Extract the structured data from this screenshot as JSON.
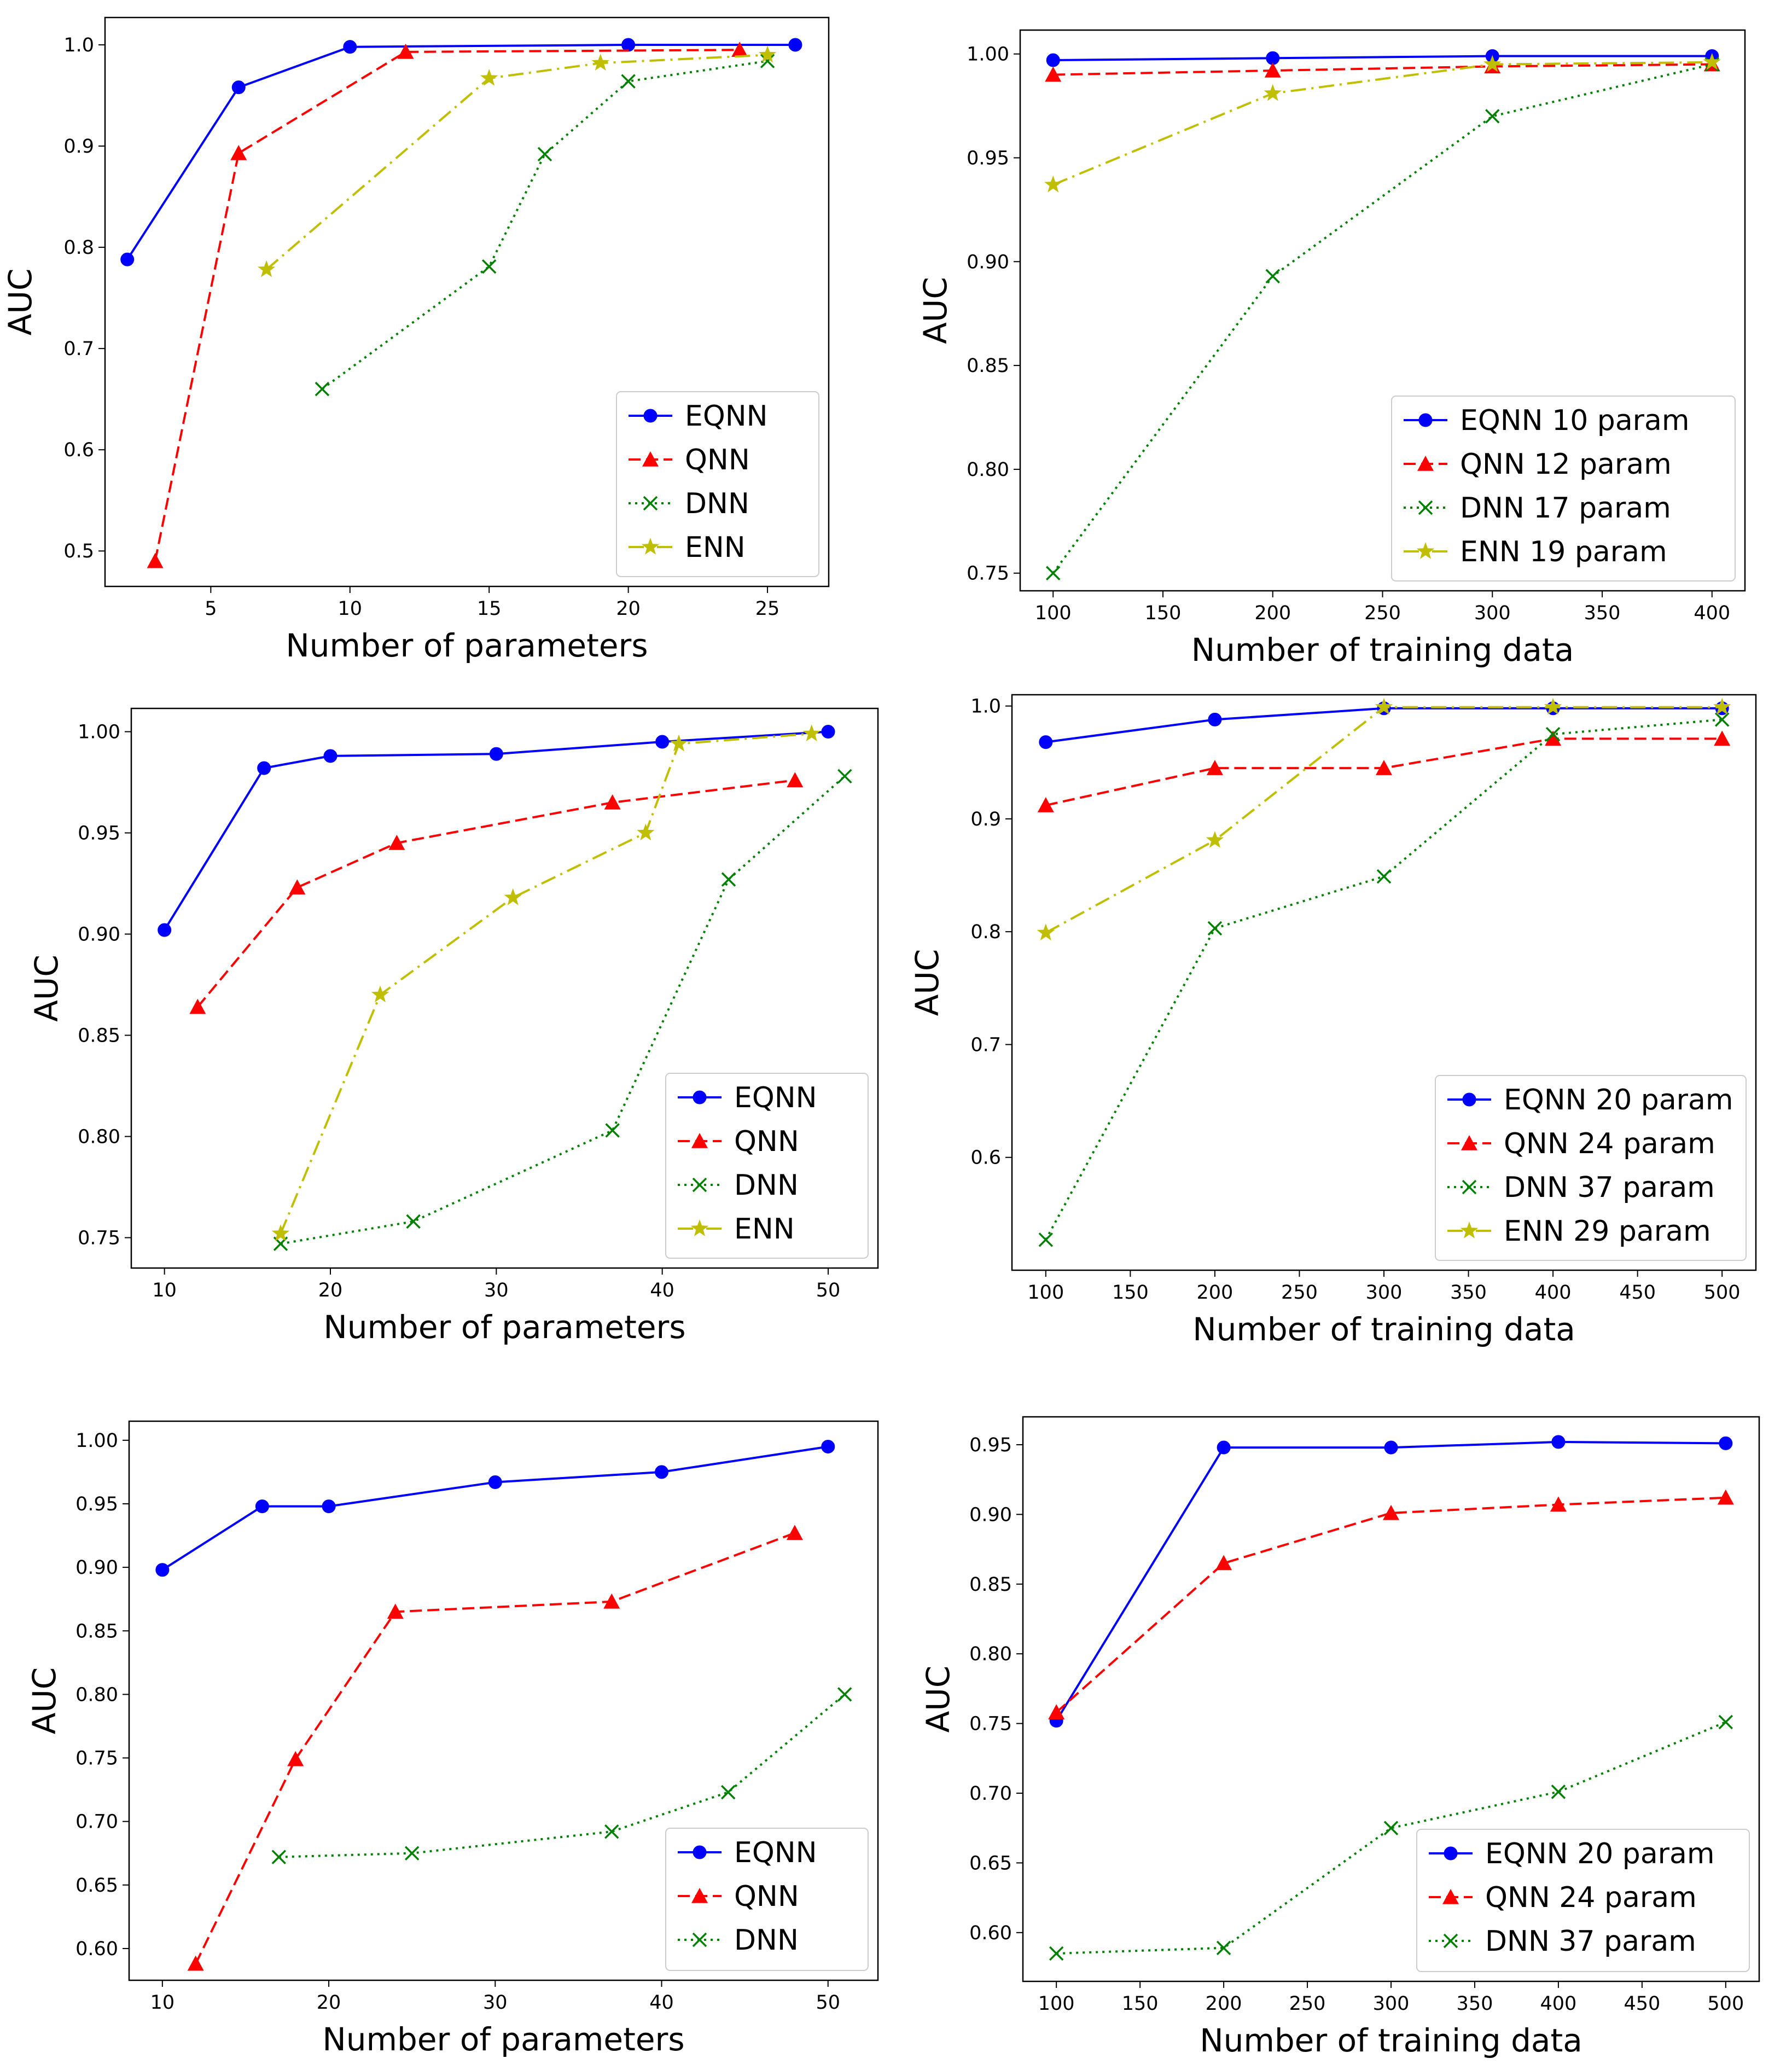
{
  "chart_data": [
    {
      "type": "line",
      "panel": "top-left",
      "xlabel": "Number of parameters",
      "ylabel": "AUC",
      "xlim": [
        1.2,
        27.2
      ],
      "ylim": [
        0.465,
        1.027
      ],
      "xticks": [
        5,
        10,
        15,
        20,
        25
      ],
      "yticks": [
        0.5,
        0.6,
        0.7,
        0.8,
        0.9,
        1.0
      ],
      "ytick_format": 1,
      "legend_position": "lower-right",
      "series": [
        {
          "name": "EQNN",
          "style": "eqnn",
          "x": [
            2,
            6,
            10,
            20,
            26
          ],
          "y": [
            0.788,
            0.958,
            0.998,
            1.0,
            1.0
          ]
        },
        {
          "name": "QNN",
          "style": "qnn",
          "x": [
            3,
            6,
            12,
            24
          ],
          "y": [
            0.49,
            0.893,
            0.993,
            0.995
          ]
        },
        {
          "name": "DNN",
          "style": "dnn",
          "x": [
            9,
            15,
            17,
            20,
            25
          ],
          "y": [
            0.66,
            0.781,
            0.892,
            0.964,
            0.984
          ]
        },
        {
          "name": "ENN",
          "style": "enn",
          "x": [
            7,
            15,
            19,
            25
          ],
          "y": [
            0.778,
            0.967,
            0.982,
            0.99
          ]
        }
      ]
    },
    {
      "type": "line",
      "panel": "top-right",
      "xlabel": "Number of training data",
      "ylabel": "AUC",
      "xlim": [
        85,
        415
      ],
      "ylim": [
        0.7415,
        1.0115
      ],
      "xticks": [
        100,
        150,
        200,
        250,
        300,
        350,
        400
      ],
      "yticks": [
        0.75,
        0.8,
        0.85,
        0.9,
        0.95,
        1.0
      ],
      "ytick_format": 2,
      "legend_position": "lower-right",
      "series": [
        {
          "name": "EQNN 10 param",
          "style": "eqnn",
          "x": [
            100,
            200,
            300,
            400
          ],
          "y": [
            0.997,
            0.998,
            0.999,
            0.999
          ]
        },
        {
          "name": "QNN 12 param",
          "style": "qnn",
          "x": [
            100,
            200,
            300,
            400
          ],
          "y": [
            0.99,
            0.992,
            0.994,
            0.995
          ]
        },
        {
          "name": "DNN 17 param",
          "style": "dnn",
          "x": [
            100,
            200,
            300,
            400
          ],
          "y": [
            0.75,
            0.893,
            0.97,
            0.995
          ]
        },
        {
          "name": "ENN 19 param",
          "style": "enn",
          "x": [
            100,
            200,
            300,
            400
          ],
          "y": [
            0.937,
            0.981,
            0.995,
            0.996
          ]
        }
      ]
    },
    {
      "type": "line",
      "panel": "middle-left",
      "xlabel": "Number of parameters",
      "ylabel": "AUC",
      "xlim": [
        8,
        53
      ],
      "ylim": [
        0.735,
        1.0115
      ],
      "xticks": [
        10,
        20,
        30,
        40,
        50
      ],
      "yticks": [
        0.75,
        0.8,
        0.85,
        0.9,
        0.95,
        1.0
      ],
      "ytick_format": 2,
      "legend_position": "lower-right",
      "series": [
        {
          "name": "EQNN",
          "style": "eqnn",
          "x": [
            10,
            16,
            20,
            30,
            40,
            50
          ],
          "y": [
            0.902,
            0.982,
            0.988,
            0.989,
            0.995,
            1.0
          ]
        },
        {
          "name": "QNN",
          "style": "qnn",
          "x": [
            12,
            18,
            24,
            37,
            48
          ],
          "y": [
            0.864,
            0.923,
            0.945,
            0.965,
            0.976
          ]
        },
        {
          "name": "DNN",
          "style": "dnn",
          "x": [
            17,
            25,
            37,
            44,
            51
          ],
          "y": [
            0.747,
            0.758,
            0.803,
            0.927,
            0.978
          ]
        },
        {
          "name": "ENN",
          "style": "enn",
          "x": [
            17,
            23,
            31,
            39,
            41,
            49
          ],
          "y": [
            0.752,
            0.87,
            0.918,
            0.95,
            0.994,
            0.999
          ]
        }
      ]
    },
    {
      "type": "line",
      "panel": "middle-right",
      "xlabel": "Number of training data",
      "ylabel": "AUC",
      "xlim": [
        80,
        520
      ],
      "ylim": [
        0.5,
        1.01
      ],
      "xticks": [
        100,
        150,
        200,
        250,
        300,
        350,
        400,
        450,
        500
      ],
      "yticks": [
        0.6,
        0.7,
        0.8,
        0.9,
        1.0
      ],
      "ytick_format": 1,
      "legend_position": "lower-right",
      "series": [
        {
          "name": "EQNN 20 param",
          "style": "eqnn",
          "x": [
            100,
            200,
            300,
            400,
            500
          ],
          "y": [
            0.968,
            0.988,
            0.998,
            0.998,
            0.998
          ]
        },
        {
          "name": "QNN 24 param",
          "style": "qnn",
          "x": [
            100,
            200,
            300,
            400,
            500
          ],
          "y": [
            0.912,
            0.945,
            0.945,
            0.971,
            0.971
          ]
        },
        {
          "name": "DNN 37 param",
          "style": "dnn",
          "x": [
            100,
            200,
            300,
            400,
            500
          ],
          "y": [
            0.527,
            0.803,
            0.849,
            0.975,
            0.988
          ]
        },
        {
          "name": "ENN 29 param",
          "style": "enn",
          "x": [
            100,
            200,
            300,
            400,
            500
          ],
          "y": [
            0.799,
            0.881,
            0.999,
            0.999,
            0.999
          ]
        }
      ]
    },
    {
      "type": "line",
      "panel": "bottom-left",
      "xlabel": "Number of parameters",
      "ylabel": "AUC",
      "xlim": [
        8,
        53
      ],
      "ylim": [
        0.575,
        1.015
      ],
      "xticks": [
        10,
        20,
        30,
        40,
        50
      ],
      "yticks": [
        0.6,
        0.65,
        0.7,
        0.75,
        0.8,
        0.85,
        0.9,
        0.95,
        1.0
      ],
      "ytick_format": 2,
      "legend_position": "lower-right",
      "series": [
        {
          "name": "EQNN",
          "style": "eqnn",
          "x": [
            10,
            16,
            20,
            30,
            40,
            50
          ],
          "y": [
            0.898,
            0.948,
            0.948,
            0.967,
            0.975,
            0.995
          ]
        },
        {
          "name": "QNN",
          "style": "qnn",
          "x": [
            12,
            18,
            24,
            37,
            48
          ],
          "y": [
            0.588,
            0.749,
            0.865,
            0.873,
            0.927
          ]
        },
        {
          "name": "DNN",
          "style": "dnn",
          "x": [
            17,
            25,
            37,
            44,
            51
          ],
          "y": [
            0.672,
            0.675,
            0.692,
            0.723,
            0.8
          ]
        }
      ]
    },
    {
      "type": "line",
      "panel": "bottom-right",
      "xlabel": "Number of training data",
      "ylabel": "AUC",
      "xlim": [
        80,
        520
      ],
      "ylim": [
        0.565,
        0.97
      ],
      "xticks": [
        100,
        150,
        200,
        250,
        300,
        350,
        400,
        450,
        500
      ],
      "yticks": [
        0.6,
        0.65,
        0.7,
        0.75,
        0.8,
        0.85,
        0.9,
        0.95
      ],
      "ytick_format": 2,
      "legend_position": "lower-right",
      "series": [
        {
          "name": "EQNN 20 param",
          "style": "eqnn",
          "x": [
            100,
            200,
            300,
            400,
            500
          ],
          "y": [
            0.752,
            0.948,
            0.948,
            0.952,
            0.951
          ]
        },
        {
          "name": "QNN 24 param",
          "style": "qnn",
          "x": [
            100,
            200,
            300,
            400,
            500
          ],
          "y": [
            0.758,
            0.865,
            0.901,
            0.907,
            0.912
          ]
        },
        {
          "name": "DNN 37 param",
          "style": "dnn",
          "x": [
            100,
            200,
            300,
            400,
            500
          ],
          "y": [
            0.585,
            0.589,
            0.675,
            0.701,
            0.751
          ]
        }
      ]
    }
  ],
  "styles": {
    "eqnn": {
      "color": "#0000ff",
      "marker": "circle",
      "dash": "solid"
    },
    "qnn": {
      "color": "#ff0000",
      "marker": "triangle",
      "dash": "dashed"
    },
    "dnn": {
      "color": "#008000",
      "marker": "x",
      "dash": "dotted"
    },
    "enn": {
      "color": "#bfbf00",
      "marker": "star",
      "dash": "dashdot"
    }
  }
}
